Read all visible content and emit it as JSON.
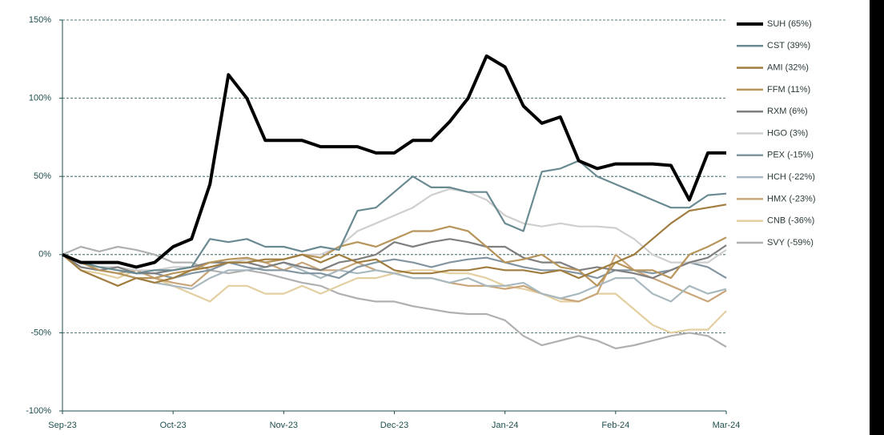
{
  "chart_data": {
    "type": "line",
    "x": [
      "Sep-23",
      null,
      null,
      null,
      null,
      null,
      "Oct-23",
      null,
      null,
      null,
      null,
      null,
      "Nov-23",
      null,
      null,
      null,
      null,
      null,
      "Dec-23",
      null,
      null,
      null,
      null,
      null,
      "Jan-24",
      null,
      null,
      null,
      null,
      null,
      "Feb-24",
      null,
      null,
      null,
      null,
      null,
      "Mar-24"
    ],
    "ylim": [
      -100,
      150
    ],
    "yticks": [
      {
        "value": -100,
        "label": "-100%"
      },
      {
        "value": -50,
        "label": "-50%"
      },
      {
        "value": 0,
        "label": "0%"
      },
      {
        "value": 50,
        "label": "50%"
      },
      {
        "value": 100,
        "label": "100%"
      },
      {
        "value": 150,
        "label": "150%"
      }
    ],
    "grid": true,
    "legend": "right",
    "series": [
      {
        "name": "SUH (65%)",
        "color": "#000000",
        "values": [
          0,
          -5,
          -5,
          -5,
          -8,
          -5,
          5,
          10,
          45,
          115,
          100,
          73,
          73,
          73,
          69,
          69,
          69,
          65,
          65,
          73,
          73,
          85,
          100,
          127,
          120,
          95,
          84,
          88,
          60,
          55,
          58,
          58,
          58,
          57,
          35,
          65,
          65
        ]
      },
      {
        "name": "CST (39%)",
        "color": "#6a8a92",
        "values": [
          0,
          -5,
          -8,
          -10,
          -12,
          -10,
          -10,
          -8,
          10,
          8,
          10,
          5,
          5,
          2,
          5,
          3,
          28,
          30,
          40,
          50,
          43,
          43,
          40,
          40,
          20,
          15,
          53,
          55,
          60,
          50,
          45,
          40,
          35,
          30,
          30,
          38,
          39
        ]
      },
      {
        "name": "AMI (32%)",
        "color": "#a07d3e",
        "values": [
          0,
          -10,
          -15,
          -20,
          -15,
          -18,
          -15,
          -10,
          -8,
          -5,
          -5,
          -3,
          -3,
          0,
          -5,
          0,
          -5,
          -3,
          -10,
          -12,
          -12,
          -10,
          -10,
          -8,
          -10,
          -10,
          -12,
          -10,
          -15,
          -10,
          -5,
          0,
          10,
          20,
          28,
          30,
          32
        ]
      },
      {
        "name": "FFM (11%)",
        "color": "#b8955a",
        "values": [
          0,
          -5,
          -10,
          -12,
          -15,
          -15,
          -12,
          -10,
          -5,
          -3,
          -2,
          -5,
          -3,
          0,
          -2,
          5,
          8,
          5,
          10,
          15,
          15,
          18,
          15,
          5,
          -5,
          -3,
          0,
          -8,
          -10,
          -20,
          -5,
          -10,
          -10,
          -15,
          0,
          5,
          11
        ]
      },
      {
        "name": "RXM (6%)",
        "color": "#7f7f7f",
        "values": [
          0,
          -8,
          -10,
          -8,
          -12,
          -12,
          -10,
          -8,
          -5,
          -5,
          -5,
          -8,
          -5,
          -8,
          -10,
          -5,
          -3,
          0,
          8,
          5,
          8,
          10,
          8,
          5,
          5,
          -2,
          -5,
          -5,
          -10,
          -8,
          -10,
          -12,
          -15,
          -10,
          -5,
          -2,
          6
        ]
      },
      {
        "name": "HGO (3%)",
        "color": "#cfcfcf",
        "values": [
          0,
          -5,
          -8,
          -8,
          -10,
          -10,
          -8,
          -8,
          -5,
          -5,
          -3,
          -5,
          -3,
          0,
          0,
          5,
          15,
          20,
          25,
          30,
          38,
          42,
          40,
          35,
          25,
          20,
          18,
          20,
          18,
          18,
          17,
          10,
          0,
          -5,
          -5,
          -5,
          3
        ]
      },
      {
        "name": "PEX (-15%)",
        "color": "#8295a0",
        "values": [
          0,
          -5,
          -8,
          -10,
          -12,
          -12,
          -15,
          -12,
          -10,
          -5,
          -8,
          -10,
          -10,
          -12,
          -12,
          -15,
          -8,
          -5,
          -3,
          -5,
          -8,
          -5,
          -3,
          -2,
          -5,
          -8,
          -10,
          -10,
          -12,
          -15,
          -10,
          -10,
          -12,
          -10,
          -5,
          -8,
          -15
        ]
      },
      {
        "name": "HCH (-22%)",
        "color": "#a9b9c0",
        "values": [
          0,
          -8,
          -10,
          -12,
          -15,
          -18,
          -20,
          -22,
          -15,
          -10,
          -10,
          -8,
          -5,
          -10,
          -15,
          -10,
          -12,
          -10,
          -12,
          -15,
          -15,
          -18,
          -15,
          -20,
          -20,
          -18,
          -25,
          -28,
          -25,
          -20,
          -15,
          -15,
          -25,
          -30,
          -20,
          -25,
          -22
        ]
      },
      {
        "name": "HMX (-23%)",
        "color": "#c9a67a",
        "values": [
          0,
          -5,
          -10,
          -12,
          -10,
          -15,
          -18,
          -20,
          -10,
          -5,
          -3,
          -5,
          -10,
          -5,
          -10,
          -10,
          -5,
          -10,
          -12,
          -15,
          -15,
          -18,
          -20,
          -20,
          -22,
          -20,
          -25,
          -28,
          -30,
          -25,
          0,
          -10,
          -15,
          -20,
          -25,
          -30,
          -23
        ]
      },
      {
        "name": "CNB (-36%)",
        "color": "#e3cfa0",
        "values": [
          0,
          -10,
          -12,
          -15,
          -10,
          -15,
          -20,
          -25,
          -30,
          -20,
          -20,
          -25,
          -25,
          -20,
          -25,
          -20,
          -15,
          -15,
          -12,
          -10,
          -10,
          -12,
          -12,
          -15,
          -20,
          -22,
          -25,
          -30,
          -30,
          -25,
          -25,
          -35,
          -45,
          -50,
          -48,
          -48,
          -36
        ]
      },
      {
        "name": "SVY (-59%)",
        "color": "#b0b0b0",
        "values": [
          0,
          5,
          2,
          5,
          3,
          0,
          -5,
          -5,
          -10,
          -12,
          -10,
          -12,
          -15,
          -18,
          -20,
          -25,
          -28,
          -30,
          -30,
          -33,
          -35,
          -37,
          -38,
          -38,
          -42,
          -52,
          -58,
          -55,
          -52,
          -55,
          -60,
          -58,
          -55,
          -52,
          -50,
          -52,
          -59
        ]
      }
    ]
  }
}
